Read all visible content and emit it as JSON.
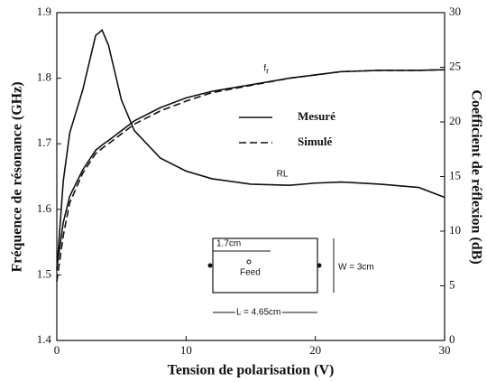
{
  "chart_data": {
    "type": "line",
    "xlabel": "Tension de polarisation (V)",
    "ylabel": "Fréquence de résonance (GHz)",
    "y2label": "Coefficient de réflexion (dB)",
    "xlim": [
      0,
      30
    ],
    "xticks": [
      0,
      10,
      20,
      30
    ],
    "ylim": [
      1.4,
      1.9
    ],
    "yticks": [
      1.4,
      1.5,
      1.6,
      1.7,
      1.8,
      1.9
    ],
    "y2lim": [
      0,
      30
    ],
    "y2ticks": [
      0,
      5,
      10,
      15,
      20,
      25,
      30
    ],
    "x": [
      0,
      0.5,
      1,
      2,
      3,
      3.5,
      4,
      5,
      6,
      8,
      10,
      12,
      15,
      18,
      20,
      22,
      25,
      28,
      30
    ],
    "series": [
      {
        "name": "Mesuré",
        "color": "#111111",
        "dash": false,
        "values": [
          1.51,
          1.58,
          1.62,
          1.66,
          1.69,
          1.698,
          1.705,
          1.72,
          1.735,
          1.755,
          1.77,
          1.78,
          1.79,
          1.8,
          1.805,
          1.81,
          1.812,
          1.812,
          1.813
        ]
      },
      {
        "name": "Simulé",
        "color": "#111111",
        "dash": true,
        "values": [
          1.49,
          1.56,
          1.61,
          1.655,
          1.685,
          1.693,
          1.7,
          1.715,
          1.73,
          1.75,
          1.765,
          1.778,
          1.789,
          1.8,
          1.805,
          1.81,
          1.812,
          1.812,
          1.813
        ]
      },
      {
        "color": "#111111",
        "dash": false,
        "axis": "y2",
        "values": [
          6.4,
          14.6,
          19,
          22.9,
          27.9,
          28.4,
          27,
          22,
          19.2,
          16.7,
          15.5,
          14.8,
          14.3,
          14.2,
          14.4,
          14.5,
          14.3,
          14,
          13.1
        ]
      }
    ],
    "annotations": [
      {
        "text": "f",
        "sub": "r",
        "x": 16,
        "y": 1.815
      },
      {
        "text": "RL",
        "x": 17,
        "y2": 15.2
      }
    ],
    "inset": {
      "labels": [
        "1.7cm",
        "Feed",
        "W = 3cm",
        "L = 4.65cm"
      ]
    }
  }
}
